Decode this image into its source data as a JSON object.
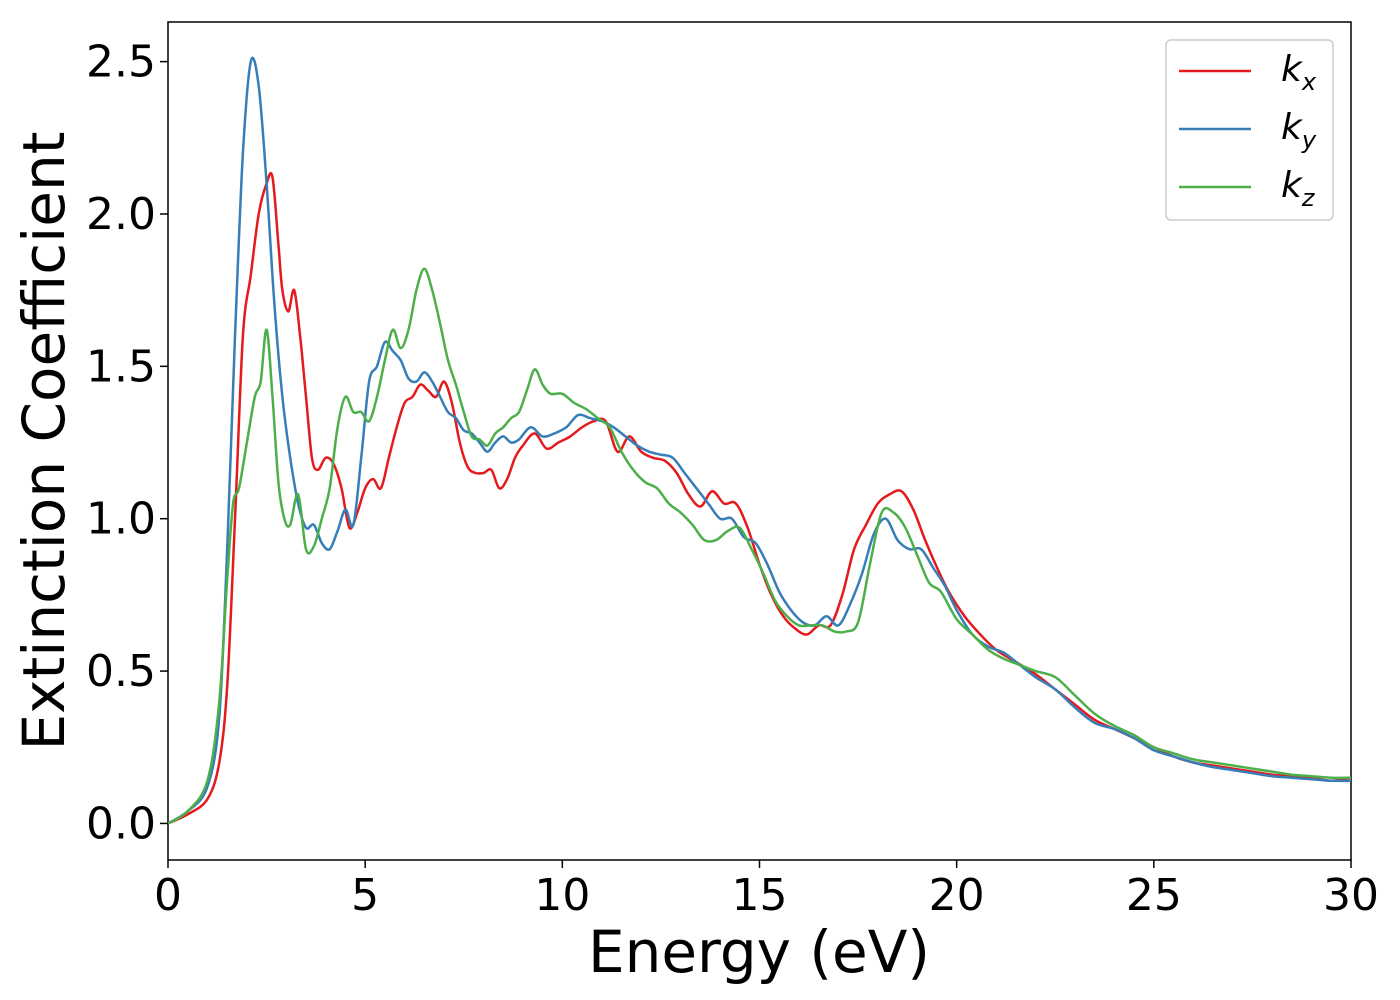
{
  "chart_data": {
    "type": "line",
    "title": "",
    "xlabel": "Energy (eV)",
    "ylabel": "Extinction Coefficient",
    "xlim": [
      0,
      30
    ],
    "ylim": [
      -0.12,
      2.63
    ],
    "xticks": [
      0,
      5,
      10,
      15,
      20,
      25,
      30
    ],
    "yticks": [
      0.0,
      0.5,
      1.0,
      1.5,
      2.0,
      2.5
    ],
    "xtick_labels": [
      "0",
      "5",
      "10",
      "15",
      "20",
      "25",
      "30"
    ],
    "ytick_labels": [
      "0.0",
      "0.5",
      "1.0",
      "1.5",
      "2.0",
      "2.5"
    ],
    "grid": false,
    "legend_position": "top-right",
    "series": [
      {
        "name": "k_x",
        "label_base": "k",
        "label_sub": "x",
        "color": "#e41a1c",
        "x": [
          0,
          0.5,
          1.0,
          1.3,
          1.5,
          1.7,
          1.9,
          2.1,
          2.3,
          2.5,
          2.65,
          2.8,
          2.9,
          3.05,
          3.2,
          3.35,
          3.5,
          3.65,
          3.8,
          4.0,
          4.2,
          4.4,
          4.6,
          4.8,
          5.0,
          5.2,
          5.4,
          5.6,
          5.8,
          6.0,
          6.2,
          6.4,
          6.6,
          6.8,
          7.0,
          7.2,
          7.4,
          7.6,
          7.8,
          8.0,
          8.2,
          8.4,
          8.6,
          8.8,
          9.0,
          9.3,
          9.6,
          9.9,
          10.2,
          10.5,
          10.8,
          11.1,
          11.4,
          11.7,
          12.0,
          12.3,
          12.6,
          12.9,
          13.2,
          13.5,
          13.8,
          14.1,
          14.4,
          14.7,
          15.0,
          15.3,
          15.6,
          15.9,
          16.2,
          16.5,
          16.8,
          17.1,
          17.4,
          17.7,
          18.0,
          18.3,
          18.6,
          18.9,
          19.2,
          19.5,
          19.8,
          20.2,
          20.6,
          21.0,
          21.5,
          22.0,
          22.5,
          23.0,
          23.5,
          24.0,
          24.5,
          25.0,
          25.5,
          26.0,
          26.5,
          27.0,
          27.5,
          28.0,
          28.5,
          29.0,
          29.5,
          30.0
        ],
        "y": [
          0.0,
          0.03,
          0.08,
          0.2,
          0.45,
          1.0,
          1.6,
          1.8,
          2.0,
          2.1,
          2.12,
          1.9,
          1.75,
          1.68,
          1.75,
          1.6,
          1.4,
          1.2,
          1.16,
          1.2,
          1.18,
          1.1,
          0.97,
          1.02,
          1.1,
          1.13,
          1.1,
          1.2,
          1.3,
          1.38,
          1.4,
          1.44,
          1.42,
          1.4,
          1.45,
          1.38,
          1.25,
          1.17,
          1.15,
          1.15,
          1.16,
          1.1,
          1.13,
          1.2,
          1.24,
          1.28,
          1.23,
          1.25,
          1.27,
          1.3,
          1.32,
          1.32,
          1.22,
          1.27,
          1.22,
          1.2,
          1.19,
          1.15,
          1.08,
          1.04,
          1.09,
          1.05,
          1.05,
          0.97,
          0.85,
          0.75,
          0.68,
          0.64,
          0.62,
          0.65,
          0.65,
          0.75,
          0.9,
          0.98,
          1.05,
          1.08,
          1.09,
          1.03,
          0.93,
          0.84,
          0.76,
          0.68,
          0.62,
          0.57,
          0.53,
          0.49,
          0.44,
          0.39,
          0.34,
          0.31,
          0.28,
          0.25,
          0.22,
          0.2,
          0.19,
          0.18,
          0.17,
          0.16,
          0.155,
          0.15,
          0.14,
          0.15
        ]
      },
      {
        "name": "k_y",
        "label_base": "k",
        "label_sub": "y",
        "color": "#377eb8",
        "x": [
          0,
          0.5,
          1.0,
          1.3,
          1.5,
          1.7,
          1.9,
          2.1,
          2.3,
          2.5,
          2.7,
          2.9,
          3.1,
          3.3,
          3.5,
          3.7,
          3.9,
          4.1,
          4.3,
          4.5,
          4.7,
          4.9,
          5.1,
          5.3,
          5.5,
          5.7,
          5.9,
          6.1,
          6.3,
          6.5,
          6.7,
          6.9,
          7.1,
          7.3,
          7.5,
          7.7,
          7.9,
          8.1,
          8.3,
          8.5,
          8.7,
          8.9,
          9.2,
          9.5,
          9.8,
          10.1,
          10.4,
          10.7,
          11.0,
          11.3,
          11.6,
          11.9,
          12.2,
          12.5,
          12.8,
          13.1,
          13.4,
          13.7,
          14.0,
          14.3,
          14.6,
          14.9,
          15.2,
          15.5,
          15.8,
          16.1,
          16.4,
          16.7,
          17.0,
          17.3,
          17.6,
          17.9,
          18.2,
          18.5,
          18.8,
          19.1,
          19.4,
          19.7,
          20.0,
          20.4,
          20.8,
          21.2,
          21.6,
          22.0,
          22.5,
          23.0,
          23.5,
          24.0,
          24.5,
          25.0,
          25.5,
          26.0,
          26.5,
          27.0,
          27.5,
          28.0,
          28.5,
          29.0,
          29.5,
          30.0
        ],
        "y": [
          0.0,
          0.04,
          0.12,
          0.35,
          0.9,
          1.6,
          2.2,
          2.5,
          2.42,
          2.1,
          1.7,
          1.4,
          1.2,
          1.05,
          0.97,
          0.98,
          0.92,
          0.9,
          0.96,
          1.03,
          0.98,
          1.2,
          1.45,
          1.5,
          1.58,
          1.55,
          1.52,
          1.46,
          1.45,
          1.48,
          1.45,
          1.4,
          1.35,
          1.33,
          1.29,
          1.28,
          1.25,
          1.22,
          1.25,
          1.27,
          1.25,
          1.26,
          1.3,
          1.27,
          1.28,
          1.3,
          1.34,
          1.33,
          1.32,
          1.3,
          1.27,
          1.24,
          1.22,
          1.21,
          1.2,
          1.15,
          1.1,
          1.05,
          1.0,
          1.0,
          0.94,
          0.92,
          0.85,
          0.76,
          0.7,
          0.66,
          0.65,
          0.68,
          0.65,
          0.72,
          0.82,
          0.95,
          1.0,
          0.93,
          0.9,
          0.9,
          0.84,
          0.78,
          0.7,
          0.62,
          0.58,
          0.56,
          0.52,
          0.48,
          0.44,
          0.38,
          0.33,
          0.31,
          0.28,
          0.24,
          0.22,
          0.2,
          0.185,
          0.175,
          0.165,
          0.155,
          0.15,
          0.145,
          0.14,
          0.14
        ]
      },
      {
        "name": "k_z",
        "label_base": "k",
        "label_sub": "z",
        "color": "#4daf4a",
        "x": [
          0,
          0.5,
          1.0,
          1.3,
          1.5,
          1.65,
          1.8,
          2.0,
          2.2,
          2.35,
          2.5,
          2.65,
          2.8,
          2.95,
          3.1,
          3.3,
          3.5,
          3.7,
          3.9,
          4.1,
          4.3,
          4.5,
          4.7,
          4.9,
          5.1,
          5.3,
          5.5,
          5.7,
          5.9,
          6.1,
          6.3,
          6.5,
          6.7,
          6.9,
          7.1,
          7.3,
          7.5,
          7.7,
          7.9,
          8.1,
          8.3,
          8.5,
          8.7,
          8.9,
          9.1,
          9.3,
          9.5,
          9.7,
          10.0,
          10.3,
          10.6,
          10.9,
          11.2,
          11.5,
          11.8,
          12.1,
          12.4,
          12.7,
          13.0,
          13.3,
          13.6,
          13.9,
          14.2,
          14.5,
          14.8,
          15.1,
          15.4,
          15.7,
          16.0,
          16.3,
          16.6,
          16.9,
          17.2,
          17.5,
          17.8,
          18.1,
          18.4,
          18.7,
          19.0,
          19.3,
          19.6,
          20.0,
          20.4,
          20.8,
          21.2,
          21.6,
          22.0,
          22.5,
          23.0,
          23.5,
          24.0,
          24.5,
          25.0,
          25.5,
          26.0,
          26.5,
          27.0,
          27.5,
          28.0,
          28.5,
          29.0,
          29.5,
          30.0
        ],
        "y": [
          0.0,
          0.04,
          0.14,
          0.4,
          0.8,
          1.05,
          1.1,
          1.25,
          1.4,
          1.45,
          1.62,
          1.4,
          1.12,
          1.0,
          0.98,
          1.08,
          0.9,
          0.91,
          1.0,
          1.1,
          1.3,
          1.4,
          1.35,
          1.35,
          1.32,
          1.4,
          1.52,
          1.62,
          1.56,
          1.62,
          1.75,
          1.82,
          1.75,
          1.64,
          1.52,
          1.44,
          1.35,
          1.27,
          1.26,
          1.24,
          1.28,
          1.3,
          1.33,
          1.35,
          1.42,
          1.49,
          1.44,
          1.41,
          1.41,
          1.38,
          1.36,
          1.33,
          1.3,
          1.22,
          1.16,
          1.12,
          1.1,
          1.05,
          1.02,
          0.98,
          0.93,
          0.93,
          0.96,
          0.97,
          0.9,
          0.82,
          0.73,
          0.68,
          0.65,
          0.65,
          0.65,
          0.63,
          0.63,
          0.66,
          0.85,
          1.02,
          1.02,
          0.97,
          0.88,
          0.79,
          0.76,
          0.67,
          0.62,
          0.57,
          0.54,
          0.52,
          0.5,
          0.48,
          0.42,
          0.36,
          0.32,
          0.29,
          0.25,
          0.23,
          0.21,
          0.2,
          0.19,
          0.18,
          0.17,
          0.16,
          0.155,
          0.15,
          0.15
        ]
      }
    ]
  }
}
